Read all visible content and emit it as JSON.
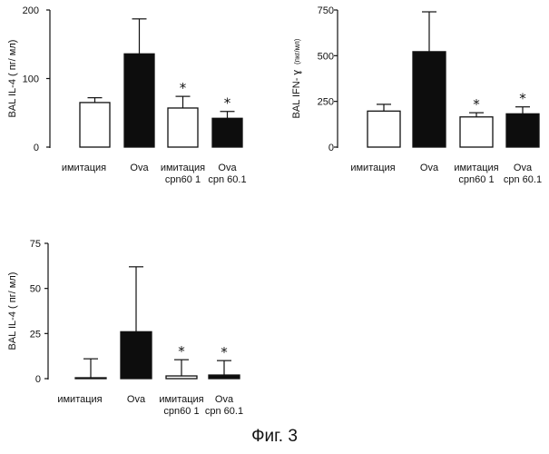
{
  "chart_data": [
    {
      "type": "bar",
      "ylabel": "BAL IL-4 ( пг/ мл)",
      "ylabel_unit": "",
      "ylim": [
        0,
        200
      ],
      "yticks": [
        "200",
        "100",
        "0"
      ],
      "yticks_values": [
        200,
        100,
        0
      ],
      "grid": false,
      "categories": [
        {
          "line1": "имитация",
          "line2": ""
        },
        {
          "line1": "Ova",
          "line2": ""
        },
        {
          "line1": "имитация",
          "line2": "cpn60 1"
        },
        {
          "line1": "Ova",
          "line2": "cpn 60.1"
        }
      ],
      "values": [
        65,
        136,
        57,
        42
      ],
      "errors": [
        7,
        51,
        17,
        10
      ],
      "bar_fill": [
        "#ffffff",
        "#0d0d0d",
        "#ffffff",
        "#0d0d0d"
      ],
      "significance": [
        "",
        "",
        "*",
        "*"
      ]
    },
    {
      "type": "bar",
      "ylabel": "BAL IFN- ɣ",
      "ylabel_unit": "(пкг/мл)",
      "ylim": [
        0,
        750
      ],
      "yticks": [
        "750",
        "500",
        "250",
        "0"
      ],
      "yticks_values": [
        750,
        500,
        250,
        0
      ],
      "grid": false,
      "categories": [
        {
          "line1": "имитация",
          "line2": ""
        },
        {
          "line1": "Ova",
          "line2": ""
        },
        {
          "line1": "имитация",
          "line2": "cpn60 1"
        },
        {
          "line1": "Ova",
          "line2": "cpn 60.1"
        }
      ],
      "values": [
        197,
        522,
        165,
        182
      ],
      "errors": [
        37,
        218,
        23,
        38
      ],
      "bar_fill": [
        "#ffffff",
        "#0d0d0d",
        "#ffffff",
        "#0d0d0d"
      ],
      "significance": [
        "",
        "",
        "*",
        "*"
      ]
    },
    {
      "type": "bar",
      "ylabel": "BAL IL-4 ( пг/ мл)",
      "ylabel_unit": "",
      "ylim": [
        0,
        75
      ],
      "yticks": [
        "75",
        "50",
        "25",
        "0"
      ],
      "yticks_values": [
        75,
        50,
        25,
        0
      ],
      "grid": false,
      "categories": [
        {
          "line1": "имитация",
          "line2": ""
        },
        {
          "line1": "Ova",
          "line2": ""
        },
        {
          "line1": "имитация",
          "line2": "cpn60 1"
        },
        {
          "line1": "Ova",
          "line2": "cpn 60.1"
        }
      ],
      "values": [
        0.5,
        26,
        1.5,
        2
      ],
      "errors": [
        10.5,
        36,
        9,
        8
      ],
      "bar_fill": [
        "#ffffff",
        "#0d0d0d",
        "#ffffff",
        "#0d0d0d"
      ],
      "significance": [
        "",
        "",
        "*",
        "*"
      ]
    }
  ],
  "caption": "Фиг. 3"
}
